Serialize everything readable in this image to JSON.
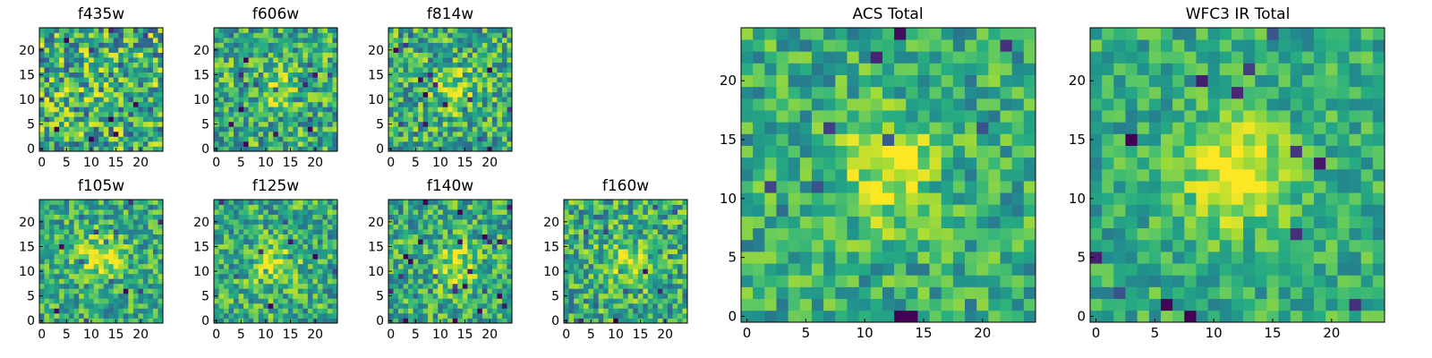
{
  "chart_data": [
    {
      "type": "heatmap",
      "title": "f435w",
      "colormap": "viridis",
      "grid_size": 25,
      "x_ticks": [
        0,
        5,
        10,
        15,
        20
      ],
      "y_ticks": [
        0,
        5,
        10,
        15,
        20
      ],
      "xlim": [
        0,
        24
      ],
      "ylim": [
        0,
        24
      ],
      "center": [
        12,
        12
      ],
      "noise_level": 0.62,
      "peak_boost": 0.05,
      "seed": 11
    },
    {
      "type": "heatmap",
      "title": "f606w",
      "colormap": "viridis",
      "grid_size": 25,
      "x_ticks": [
        0,
        5,
        10,
        15,
        20
      ],
      "y_ticks": [
        0,
        5,
        10,
        15,
        20
      ],
      "xlim": [
        0,
        24
      ],
      "ylim": [
        0,
        24
      ],
      "center": [
        12,
        12
      ],
      "noise_level": 0.5,
      "peak_boost": 0.18,
      "seed": 23
    },
    {
      "type": "heatmap",
      "title": "f814w",
      "colormap": "viridis",
      "grid_size": 25,
      "x_ticks": [
        0,
        5,
        10,
        15,
        20
      ],
      "y_ticks": [
        0,
        5,
        10,
        15,
        20
      ],
      "xlim": [
        0,
        24
      ],
      "ylim": [
        0,
        24
      ],
      "center": [
        13,
        12
      ],
      "noise_level": 0.5,
      "peak_boost": 0.25,
      "seed": 37
    },
    {
      "type": "heatmap",
      "title": "f105w",
      "colormap": "viridis",
      "grid_size": 25,
      "x_ticks": [
        0,
        5,
        10,
        15,
        20
      ],
      "y_ticks": [
        0,
        5,
        10,
        15,
        20
      ],
      "xlim": [
        0,
        24
      ],
      "ylim": [
        0,
        24
      ],
      "center": [
        12,
        13
      ],
      "noise_level": 0.42,
      "peak_boost": 0.35,
      "seed": 41
    },
    {
      "type": "heatmap",
      "title": "f125w",
      "colormap": "viridis",
      "grid_size": 25,
      "x_ticks": [
        0,
        5,
        10,
        15,
        20
      ],
      "y_ticks": [
        0,
        5,
        10,
        15,
        20
      ],
      "xlim": [
        0,
        24
      ],
      "ylim": [
        0,
        24
      ],
      "center": [
        12,
        11
      ],
      "noise_level": 0.45,
      "peak_boost": 0.3,
      "seed": 53
    },
    {
      "type": "heatmap",
      "title": "f140w",
      "colormap": "viridis",
      "grid_size": 25,
      "x_ticks": [
        0,
        5,
        10,
        15,
        20
      ],
      "y_ticks": [
        0,
        5,
        10,
        15,
        20
      ],
      "xlim": [
        0,
        24
      ],
      "ylim": [
        0,
        24
      ],
      "center": [
        13,
        11
      ],
      "noise_level": 0.45,
      "peak_boost": 0.3,
      "seed": 67
    },
    {
      "type": "heatmap",
      "title": "f160w",
      "colormap": "viridis",
      "grid_size": 25,
      "x_ticks": [
        0,
        5,
        10,
        15,
        20
      ],
      "y_ticks": [
        0,
        5,
        10,
        15,
        20
      ],
      "xlim": [
        0,
        24
      ],
      "ylim": [
        0,
        24
      ],
      "center": [
        12,
        12
      ],
      "noise_level": 0.48,
      "peak_boost": 0.28,
      "seed": 79
    },
    {
      "type": "heatmap",
      "title": "ACS Total",
      "colormap": "viridis",
      "grid_size": 25,
      "x_ticks": [
        0,
        5,
        10,
        15,
        20
      ],
      "y_ticks": [
        0,
        5,
        10,
        15,
        20
      ],
      "xlim": [
        0,
        24
      ],
      "ylim": [
        0,
        24
      ],
      "center": [
        12,
        12
      ],
      "noise_level": 0.38,
      "peak_boost": 0.35,
      "seed": 97
    },
    {
      "type": "heatmap",
      "title": "WFC3 IR Total",
      "colormap": "viridis",
      "grid_size": 25,
      "x_ticks": [
        0,
        5,
        10,
        15,
        20
      ],
      "y_ticks": [
        0,
        5,
        10,
        15,
        20
      ],
      "xlim": [
        0,
        24
      ],
      "ylim": [
        0,
        24
      ],
      "center": [
        12,
        12
      ],
      "noise_level": 0.32,
      "peak_boost": 0.45,
      "seed": 113
    }
  ]
}
